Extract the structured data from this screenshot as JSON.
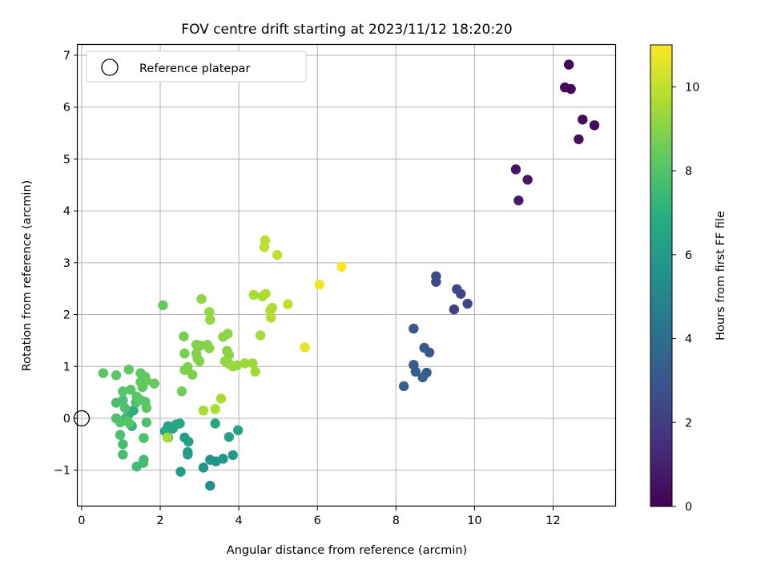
{
  "chart_data": {
    "type": "scatter",
    "title": "FOV centre drift starting at 2023/11/12 18:20:20",
    "xlabel": "Angular distance from reference (arcmin)",
    "ylabel": "Rotation from reference (arcmin)",
    "colorbar_label": "Hours from first FF file",
    "xlim": [
      -0.1,
      13.6
    ],
    "ylim": [
      -1.7,
      7.2
    ],
    "xticks": [
      0,
      2,
      4,
      6,
      8,
      10,
      12
    ],
    "yticks": [
      -1,
      0,
      1,
      2,
      3,
      4,
      5,
      6,
      7
    ],
    "xtick_labels": [
      "0",
      "2",
      "4",
      "6",
      "8",
      "10",
      "12"
    ],
    "ytick_labels": [
      "−1",
      "0",
      "1",
      "2",
      "3",
      "4",
      "5",
      "6",
      "7"
    ],
    "colorbar_range": [
      0,
      11
    ],
    "colorbar_ticks": [
      0,
      2,
      4,
      6,
      8,
      10
    ],
    "colorbar_tick_labels": [
      "0",
      "2",
      "4",
      "6",
      "8",
      "10"
    ],
    "colormap": "viridis",
    "grid": true,
    "legend": {
      "placement": "top-left",
      "entries": [
        "Reference platepar"
      ]
    },
    "reference_point": {
      "x": 0,
      "y": 0
    },
    "points": [
      {
        "x": 12.4,
        "y": 6.82,
        "h": 0.1
      },
      {
        "x": 12.3,
        "y": 6.38,
        "h": 0.2
      },
      {
        "x": 12.45,
        "y": 6.35,
        "h": 0.2
      },
      {
        "x": 12.75,
        "y": 5.76,
        "h": 0.3
      },
      {
        "x": 13.05,
        "y": 5.65,
        "h": 0.3
      },
      {
        "x": 12.65,
        "y": 5.38,
        "h": 0.4
      },
      {
        "x": 11.05,
        "y": 4.8,
        "h": 0.6
      },
      {
        "x": 11.35,
        "y": 4.6,
        "h": 0.7
      },
      {
        "x": 11.12,
        "y": 4.2,
        "h": 0.8
      },
      {
        "x": 9.02,
        "y": 2.74,
        "h": 2.5
      },
      {
        "x": 9.02,
        "y": 2.63,
        "h": 2.5
      },
      {
        "x": 9.55,
        "y": 2.49,
        "h": 2.4
      },
      {
        "x": 9.65,
        "y": 2.4,
        "h": 2.3
      },
      {
        "x": 9.82,
        "y": 2.21,
        "h": 2.3
      },
      {
        "x": 9.48,
        "y": 2.1,
        "h": 2.2
      },
      {
        "x": 8.45,
        "y": 1.73,
        "h": 3.0
      },
      {
        "x": 8.72,
        "y": 1.36,
        "h": 3.1
      },
      {
        "x": 8.85,
        "y": 1.27,
        "h": 3.1
      },
      {
        "x": 8.45,
        "y": 1.03,
        "h": 3.2
      },
      {
        "x": 8.5,
        "y": 0.9,
        "h": 3.3
      },
      {
        "x": 8.78,
        "y": 0.88,
        "h": 3.3
      },
      {
        "x": 8.68,
        "y": 0.79,
        "h": 3.4
      },
      {
        "x": 8.2,
        "y": 0.62,
        "h": 3.5
      },
      {
        "x": 3.27,
        "y": -1.3,
        "h": 5.5
      },
      {
        "x": 3.27,
        "y": -0.8,
        "h": 5.7
      },
      {
        "x": 3.42,
        "y": -0.83,
        "h": 5.7
      },
      {
        "x": 3.6,
        "y": -0.78,
        "h": 5.8
      },
      {
        "x": 3.85,
        "y": -0.71,
        "h": 5.9
      },
      {
        "x": 3.1,
        "y": -0.95,
        "h": 5.6
      },
      {
        "x": 2.52,
        "y": -1.03,
        "h": 6.0
      },
      {
        "x": 2.7,
        "y": -0.65,
        "h": 6.1
      },
      {
        "x": 2.7,
        "y": -0.7,
        "h": 6.1
      },
      {
        "x": 2.72,
        "y": -0.45,
        "h": 6.2
      },
      {
        "x": 2.62,
        "y": -0.37,
        "h": 6.2
      },
      {
        "x": 2.2,
        "y": -0.37,
        "h": 6.3
      },
      {
        "x": 2.12,
        "y": -0.25,
        "h": 6.4
      },
      {
        "x": 2.2,
        "y": -0.15,
        "h": 6.5
      },
      {
        "x": 2.32,
        "y": -0.2,
        "h": 6.4
      },
      {
        "x": 2.4,
        "y": -0.12,
        "h": 6.5
      },
      {
        "x": 2.5,
        "y": -0.1,
        "h": 6.6
      },
      {
        "x": 3.4,
        "y": -0.1,
        "h": 6.6
      },
      {
        "x": 3.75,
        "y": -0.36,
        "h": 6.3
      },
      {
        "x": 3.98,
        "y": -0.23,
        "h": 6.4
      },
      {
        "x": 1.32,
        "y": 0.15,
        "h": 7.0
      },
      {
        "x": 1.2,
        "y": 0.08,
        "h": 7.1
      },
      {
        "x": 1.12,
        "y": 0.0,
        "h": 7.2
      },
      {
        "x": 1.28,
        "y": -0.15,
        "h": 7.2
      },
      {
        "x": 1.4,
        "y": -0.93,
        "h": 7.6
      },
      {
        "x": 1.57,
        "y": -0.86,
        "h": 7.6
      },
      {
        "x": 1.58,
        "y": -0.8,
        "h": 7.6
      },
      {
        "x": 1.05,
        "y": -0.7,
        "h": 7.7
      },
      {
        "x": 1.05,
        "y": -0.5,
        "h": 7.7
      },
      {
        "x": 0.98,
        "y": -0.32,
        "h": 7.8
      },
      {
        "x": 1.58,
        "y": -0.38,
        "h": 7.8
      },
      {
        "x": 1.65,
        "y": -0.08,
        "h": 7.9
      },
      {
        "x": 0.88,
        "y": 0.0,
        "h": 7.9
      },
      {
        "x": 0.98,
        "y": -0.08,
        "h": 8.0
      },
      {
        "x": 1.15,
        "y": -0.05,
        "h": 8.0
      },
      {
        "x": 1.22,
        "y": -0.1,
        "h": 8.0
      },
      {
        "x": 0.88,
        "y": 0.3,
        "h": 7.8
      },
      {
        "x": 1.05,
        "y": 0.35,
        "h": 7.8
      },
      {
        "x": 1.1,
        "y": 0.2,
        "h": 7.9
      },
      {
        "x": 1.38,
        "y": 0.3,
        "h": 7.9
      },
      {
        "x": 1.5,
        "y": 0.35,
        "h": 8.1
      },
      {
        "x": 1.62,
        "y": 0.32,
        "h": 8.1
      },
      {
        "x": 1.65,
        "y": 0.2,
        "h": 8.2
      },
      {
        "x": 1.05,
        "y": 0.52,
        "h": 8.0
      },
      {
        "x": 1.25,
        "y": 0.55,
        "h": 8.1
      },
      {
        "x": 1.4,
        "y": 0.42,
        "h": 8.2
      },
      {
        "x": 1.55,
        "y": 0.6,
        "h": 8.2
      },
      {
        "x": 1.5,
        "y": 0.7,
        "h": 8.3
      },
      {
        "x": 1.62,
        "y": 0.8,
        "h": 8.3
      },
      {
        "x": 1.5,
        "y": 0.87,
        "h": 8.3
      },
      {
        "x": 1.85,
        "y": 0.67,
        "h": 8.4
      },
      {
        "x": 0.55,
        "y": 0.87,
        "h": 8.2
      },
      {
        "x": 0.88,
        "y": 0.83,
        "h": 8.2
      },
      {
        "x": 1.2,
        "y": 0.94,
        "h": 8.3
      },
      {
        "x": 1.65,
        "y": 0.72,
        "h": 8.4
      },
      {
        "x": 2.07,
        "y": 2.18,
        "h": 8.4
      },
      {
        "x": 2.55,
        "y": 0.52,
        "h": 8.6
      },
      {
        "x": 2.6,
        "y": 1.58,
        "h": 8.7
      },
      {
        "x": 2.62,
        "y": 1.25,
        "h": 8.7
      },
      {
        "x": 2.62,
        "y": 0.93,
        "h": 8.8
      },
      {
        "x": 2.7,
        "y": 0.99,
        "h": 8.8
      },
      {
        "x": 2.82,
        "y": 0.84,
        "h": 8.8
      },
      {
        "x": 2.92,
        "y": 1.25,
        "h": 8.9
      },
      {
        "x": 2.92,
        "y": 1.42,
        "h": 8.9
      },
      {
        "x": 2.95,
        "y": 1.15,
        "h": 8.9
      },
      {
        "x": 3.0,
        "y": 1.1,
        "h": 8.9
      },
      {
        "x": 3.02,
        "y": 1.4,
        "h": 8.9
      },
      {
        "x": 3.05,
        "y": 2.3,
        "h": 9.2
      },
      {
        "x": 3.2,
        "y": 1.42,
        "h": 9.0
      },
      {
        "x": 3.25,
        "y": 1.35,
        "h": 9.0
      },
      {
        "x": 3.25,
        "y": 2.05,
        "h": 9.2
      },
      {
        "x": 3.27,
        "y": 1.9,
        "h": 9.2
      },
      {
        "x": 3.6,
        "y": 1.57,
        "h": 9.1
      },
      {
        "x": 3.72,
        "y": 1.63,
        "h": 9.1
      },
      {
        "x": 3.7,
        "y": 1.3,
        "h": 9.0
      },
      {
        "x": 3.75,
        "y": 1.22,
        "h": 9.0
      },
      {
        "x": 3.65,
        "y": 1.1,
        "h": 9.2
      },
      {
        "x": 3.75,
        "y": 1.05,
        "h": 9.2
      },
      {
        "x": 3.85,
        "y": 1.0,
        "h": 9.3
      },
      {
        "x": 3.95,
        "y": 1.02,
        "h": 9.3
      },
      {
        "x": 4.15,
        "y": 1.06,
        "h": 9.4
      },
      {
        "x": 4.35,
        "y": 1.06,
        "h": 9.4
      },
      {
        "x": 4.42,
        "y": 0.9,
        "h": 9.5
      },
      {
        "x": 3.1,
        "y": 0.15,
        "h": 9.6
      },
      {
        "x": 3.4,
        "y": 0.18,
        "h": 9.6
      },
      {
        "x": 3.55,
        "y": 0.38,
        "h": 9.6
      },
      {
        "x": 2.18,
        "y": -0.37,
        "h": 9.5
      },
      {
        "x": 4.55,
        "y": 1.6,
        "h": 9.5
      },
      {
        "x": 4.38,
        "y": 2.38,
        "h": 9.6
      },
      {
        "x": 4.6,
        "y": 2.35,
        "h": 9.6
      },
      {
        "x": 4.68,
        "y": 2.4,
        "h": 9.7
      },
      {
        "x": 4.8,
        "y": 2.08,
        "h": 9.7
      },
      {
        "x": 4.85,
        "y": 2.13,
        "h": 9.7
      },
      {
        "x": 4.82,
        "y": 1.94,
        "h": 9.8
      },
      {
        "x": 4.65,
        "y": 3.3,
        "h": 9.9
      },
      {
        "x": 4.67,
        "y": 3.43,
        "h": 9.9
      },
      {
        "x": 4.98,
        "y": 3.15,
        "h": 10.0
      },
      {
        "x": 5.25,
        "y": 2.2,
        "h": 10.0
      },
      {
        "x": 5.68,
        "y": 1.37,
        "h": 10.6
      },
      {
        "x": 6.05,
        "y": 2.58,
        "h": 10.8
      },
      {
        "x": 6.62,
        "y": 2.92,
        "h": 11.0
      }
    ]
  }
}
